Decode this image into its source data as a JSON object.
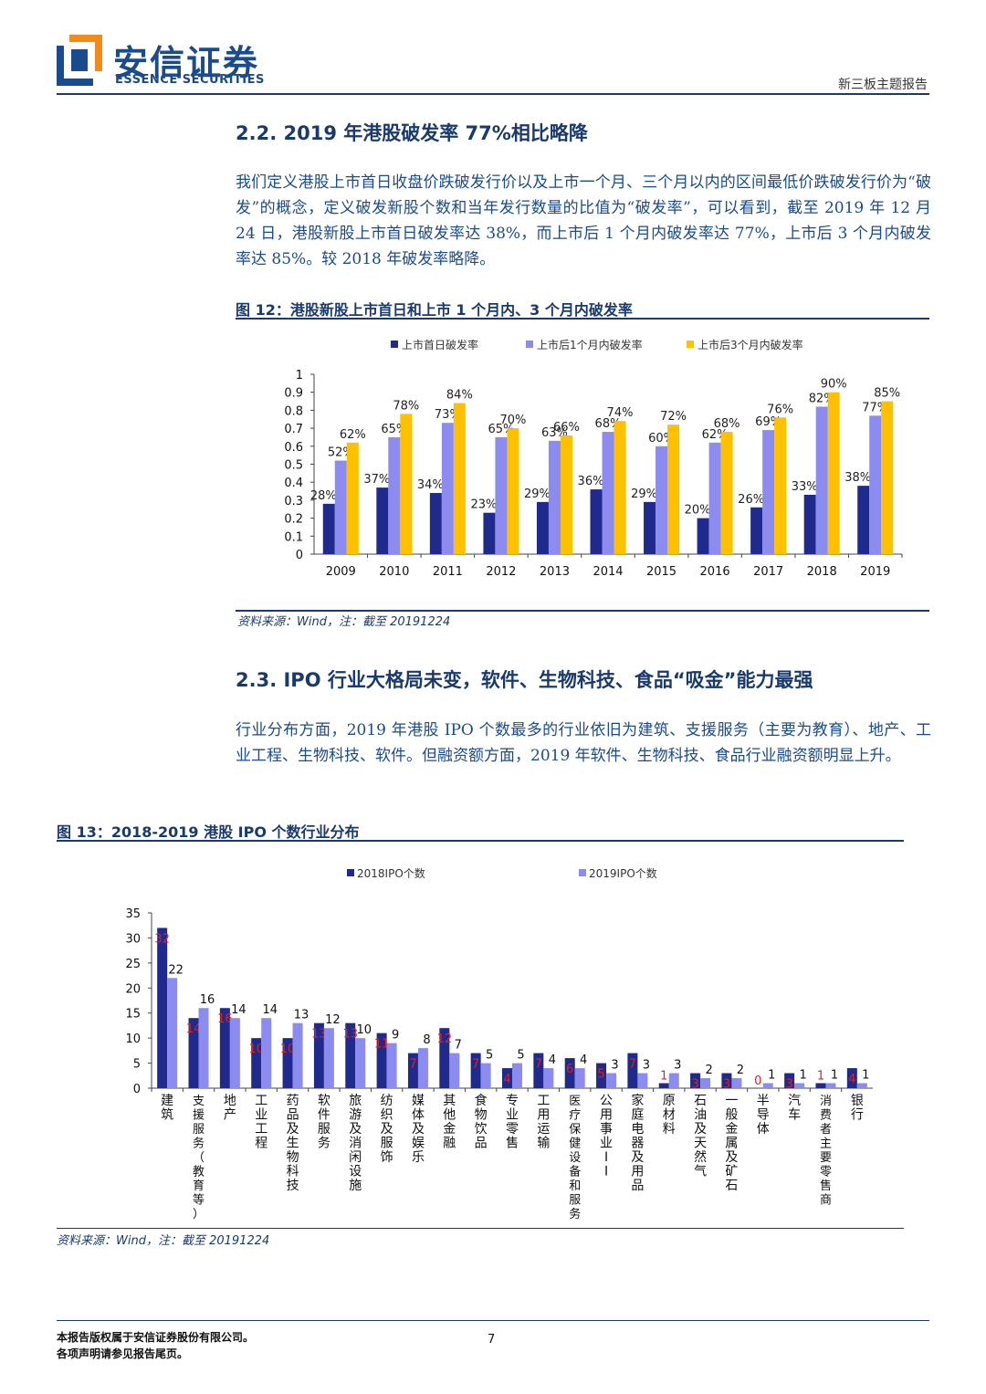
{
  "header": {
    "logo_cn": "安信证券",
    "logo_en": "ESSENCE SECURITIES",
    "report_type": "新三板主题报告"
  },
  "section1": {
    "title": "2.2. 2019 年港股破发率 77%相比略降",
    "paragraph": "我们定义港股上市首日收盘价跌破发行价以及上市一个月、三个月以内的区间最低价跌破发行价为“破发”的概念，定义破发新股个数和当年发行数量的比值为“破发率”，可以看到，截至 2019 年 12 月 24 日，港股新股上市首日破发率达 38%，而上市后 1 个月内破发率达 77%，上市后 3 个月内破发率达 85%。较 2018 年破发率略降。",
    "figure_title": "图 12：港股新股上市首日和上市 1 个月内、3 个月内破发率",
    "source": "资料来源：Wind，注：截至 20191224"
  },
  "section2": {
    "title": "2.3. IPO 行业大格局未变，软件、生物科技、食品“吸金”能力最强",
    "paragraph": "行业分布方面，2019 年港股 IPO 个数最多的行业依旧为建筑、支援服务（主要为教育）、地产、工业工程、生物科技、软件。但融资额方面，2019 年软件、生物科技、食品行业融资额明显上升。",
    "figure_title": "图 13：2018-2019 港股 IPO 个数行业分布",
    "source": "资料来源：Wind，注：截至 20191224"
  },
  "footer": {
    "copyright": "本报告版权属于安信证券股份有限公司。",
    "disclaimer": "各项声明请参见报告尾页。",
    "page_number": "7"
  },
  "colors": {
    "navy": "#1a3a6e",
    "series_dark": "#1f2a8c",
    "series_light": "#8c8cf0",
    "series_gold": "#ffc000",
    "red_label": "#e02020"
  },
  "chart_data": [
    {
      "type": "bar",
      "categories": [
        "2009",
        "2010",
        "2011",
        "2012",
        "2013",
        "2014",
        "2015",
        "2016",
        "2017",
        "2018",
        "2019"
      ],
      "series": [
        {
          "name": "上市首日破发率",
          "values": [
            0.28,
            0.37,
            0.34,
            0.23,
            0.29,
            0.36,
            0.29,
            0.2,
            0.26,
            0.33,
            0.38
          ],
          "labels": [
            "28%",
            "37%",
            "34%",
            "23%",
            "29%",
            "36%",
            "29%",
            "20%",
            "26%",
            "33%",
            "38%"
          ]
        },
        {
          "name": "上市后1个月内破发率",
          "values": [
            0.52,
            0.65,
            0.73,
            0.65,
            0.63,
            0.68,
            0.6,
            0.62,
            0.69,
            0.82,
            0.77
          ],
          "labels": [
            "52%",
            "65%",
            "73%",
            "65%",
            "63%",
            "68%",
            "60%",
            "62%",
            "69%",
            "82%",
            "77%"
          ]
        },
        {
          "name": "上市后3个月内破发率",
          "values": [
            0.62,
            0.78,
            0.84,
            0.7,
            0.66,
            0.74,
            0.72,
            0.68,
            0.76,
            0.9,
            0.85
          ],
          "labels": [
            "62%",
            "78%",
            "84%",
            "70%",
            "66%",
            "74%",
            "72%",
            "68%",
            "76%",
            "90%",
            "85%"
          ]
        }
      ],
      "ylim": [
        0,
        1
      ],
      "yticks": [
        "0",
        "0.1",
        "0.2",
        "0.3",
        "0.4",
        "0.5",
        "0.6",
        "0.7",
        "0.8",
        "0.9",
        "1"
      ],
      "legend": "top"
    },
    {
      "type": "bar",
      "categories": [
        "建筑",
        "支援服务（教育等）",
        "地产",
        "工业工程",
        "药品及生物科技",
        "软件服务",
        "旅游及消闲设施",
        "纺织及服饰",
        "媒体及娱乐",
        "其他金融",
        "食物饮品",
        "专业零售",
        "工用运输",
        "医疗保健设备和服务",
        "公用事业II",
        "家庭电器及用品",
        "原材料",
        "石油及天然气",
        "一般金属及矿石",
        "半导体",
        "汽车",
        "消费者主要零售商",
        "银行"
      ],
      "series": [
        {
          "name": "2018IPO个数",
          "values": [
            32,
            14,
            16,
            10,
            10,
            13,
            13,
            11,
            7,
            12,
            7,
            4,
            7,
            6,
            5,
            7,
            1,
            3,
            3,
            0,
            3,
            1,
            4
          ],
          "labels": [
            "32",
            "14",
            "16",
            "10",
            "10",
            "13",
            "13",
            "11",
            "7",
            "12",
            "7",
            "4",
            "7",
            "6",
            "5",
            "7",
            "1",
            "3",
            "3",
            "0",
            "3",
            "1",
            "4"
          ]
        },
        {
          "name": "2019IPO个数",
          "values": [
            22,
            16,
            14,
            14,
            13,
            12,
            10,
            9,
            8,
            7,
            5,
            5,
            4,
            4,
            3,
            3,
            3,
            2,
            2,
            1,
            1,
            1,
            1
          ],
          "labels": [
            "22",
            "16",
            "14",
            "14",
            "13",
            "12",
            "10",
            "9",
            "8",
            "7",
            "5",
            "5",
            "4",
            "4",
            "3",
            "3",
            "3",
            "2",
            "2",
            "1",
            "1",
            "1",
            "1"
          ]
        }
      ],
      "ylim": [
        0,
        35
      ],
      "yticks": [
        "0",
        "5",
        "10",
        "15",
        "20",
        "25",
        "30",
        "35"
      ],
      "legend": "top"
    }
  ]
}
